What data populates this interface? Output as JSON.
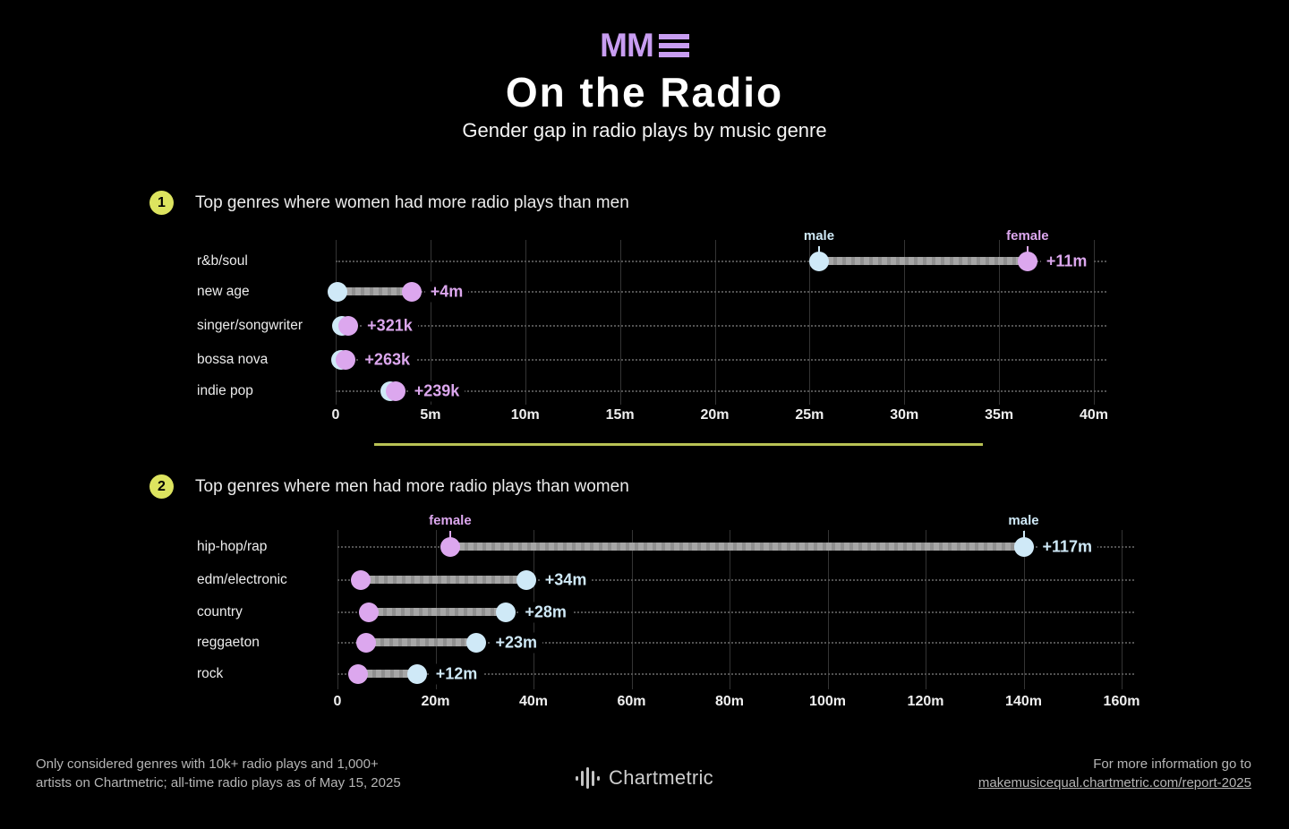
{
  "header": {
    "logo_mm": "MM",
    "title": "On the Radio",
    "subtitle": "Gender gap in radio plays by music genre"
  },
  "colors": {
    "background": "#000000",
    "male": "#cfe9f7",
    "female": "#dca7ee",
    "logo": "#c89df1",
    "badge": "#dde45f",
    "divider": "#b8c254",
    "bar": "#a6a6a6",
    "grid": "#343434",
    "dotted": "#525252",
    "text": "#f0f0f0",
    "muted": "#b5b5b5"
  },
  "sections": [
    {
      "badge": "1",
      "heading": "Top genres where women had more radio plays than men"
    },
    {
      "badge": "2",
      "heading": "Top genres where men had more radio plays than women"
    }
  ],
  "chart_data": [
    {
      "type": "dumbbell",
      "title": "Top genres where women had more radio plays than men",
      "units": "all-time radio plays (millions)",
      "categories": [
        "r&b/soul",
        "new age",
        "singer/songwriter",
        "bossa nova",
        "indie pop"
      ],
      "series": [
        {
          "name": "male",
          "values": [
            25.5,
            0.1,
            0.35,
            0.28,
            2.9
          ]
        },
        {
          "name": "female",
          "values": [
            36.5,
            4.0,
            0.67,
            0.54,
            3.15
          ]
        }
      ],
      "diff_labels": [
        "+11m",
        "+4m",
        "+321k",
        "+263k",
        "+239k"
      ],
      "diff_color": "female",
      "x_ticks": [
        "0",
        "5m",
        "10m",
        "15m",
        "20m",
        "25m",
        "30m",
        "35m",
        "40m"
      ],
      "xlim": [
        0,
        40
      ],
      "grid": true,
      "annotations": [
        {
          "text": "male",
          "value": 25.5,
          "series": "male"
        },
        {
          "text": "female",
          "value": 36.5,
          "series": "female"
        }
      ]
    },
    {
      "type": "dumbbell",
      "title": "Top genres where men had more radio plays than women",
      "units": "all-time radio plays (millions)",
      "categories": [
        "hip-hop/rap",
        "edm/electronic",
        "country",
        "reggaeton",
        "rock"
      ],
      "series": [
        {
          "name": "female",
          "values": [
            23,
            4.8,
            6.4,
            5.9,
            4.2
          ]
        },
        {
          "name": "male",
          "values": [
            140,
            38.5,
            34.4,
            28.4,
            16.2
          ]
        }
      ],
      "diff_labels": [
        "+117m",
        "+34m",
        "+28m",
        "+23m",
        "+12m"
      ],
      "diff_color": "male",
      "x_ticks": [
        "0",
        "20m",
        "40m",
        "60m",
        "80m",
        "100m",
        "120m",
        "140m",
        "160m"
      ],
      "xlim": [
        0,
        160
      ],
      "grid": true,
      "annotations": [
        {
          "text": "female",
          "value": 23,
          "series": "female"
        },
        {
          "text": "male",
          "value": 140,
          "series": "male"
        }
      ]
    }
  ],
  "footer": {
    "note_line1": "Only considered genres with 10k+ radio plays and 1,000+",
    "note_line2": "artists on Chartmetric; all-time radio plays as of May 15, 2025",
    "brand": "Chartmetric",
    "info_line1": "For more information go to",
    "info_link": "makemusicequal.chartmetric.com/report-2025"
  }
}
